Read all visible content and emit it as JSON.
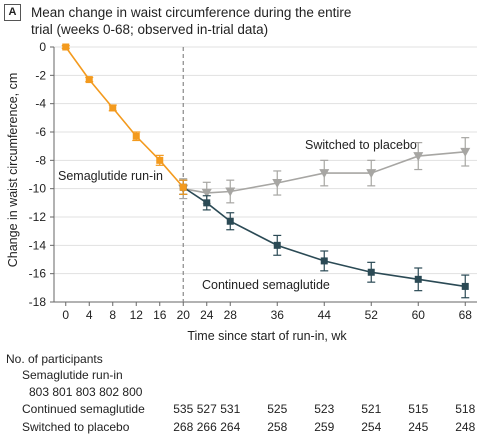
{
  "panel": "A",
  "title_line1": "Mean change in waist circumference during the entire",
  "title_line2": "trial (weeks 0-68; observed in-trial data)",
  "colors": {
    "runin": "#f39a1e",
    "continued": "#2b4a55",
    "placebo": "#a7a6a3",
    "axis": "#666666",
    "grid": "#e1e1e1",
    "dashed": "#888888"
  },
  "chart_data": {
    "type": "line",
    "xlabel": "Time since start of run-in, wk",
    "ylabel": "Change in waist circumference, cm",
    "xlim": [
      -2,
      70
    ],
    "ylim": [
      -18,
      0
    ],
    "xticks": [
      0,
      4,
      8,
      12,
      16,
      20,
      24,
      28,
      36,
      44,
      52,
      60,
      68
    ],
    "yticks": [
      0,
      -2,
      -4,
      -6,
      -8,
      -10,
      -12,
      -14,
      -16,
      -18
    ],
    "grid": "horizontal",
    "reference_line_x": 20,
    "series": [
      {
        "name": "Semaglutide run-in",
        "marker": "square",
        "x": [
          0,
          4,
          8,
          12,
          16,
          20
        ],
        "y": [
          0,
          -2.3,
          -4.3,
          -6.3,
          -8.0,
          -9.9
        ],
        "err": [
          0.1,
          0.15,
          0.2,
          0.3,
          0.35,
          0.5
        ]
      },
      {
        "name": "Continued semaglutide",
        "marker": "square",
        "x": [
          20,
          24,
          28,
          36,
          44,
          52,
          60,
          68
        ],
        "y": [
          -9.9,
          -11.0,
          -12.3,
          -14.0,
          -15.1,
          -15.9,
          -16.4,
          -16.9
        ],
        "err": [
          0.5,
          0.5,
          0.6,
          0.7,
          0.7,
          0.7,
          0.8,
          0.8
        ]
      },
      {
        "name": "Switched to placebo",
        "marker": "triangle-down",
        "x": [
          20,
          24,
          28,
          36,
          44,
          52,
          60,
          68
        ],
        "y": [
          -10.0,
          -10.3,
          -10.2,
          -9.6,
          -8.9,
          -8.9,
          -7.7,
          -7.4
        ],
        "err": [
          0.7,
          0.75,
          0.8,
          0.85,
          0.9,
          0.9,
          0.95,
          1.0
        ]
      }
    ],
    "annotations": [
      "Semaglutide run-in",
      "Switched to placebo",
      "Continued semaglutide"
    ]
  },
  "participants": {
    "heading": "No. of participants",
    "runin_label": "Semaglutide run-in",
    "runin_values": "803 801 803 802 800",
    "continued_label": "Continued semaglutide",
    "continued_weeks": [
      20,
      24,
      28,
      36,
      44,
      52,
      60,
      68
    ],
    "continued_values": [
      "535",
      "527",
      "531",
      "525",
      "523",
      "521",
      "515",
      "518"
    ],
    "placebo_label": "Switched to placebo",
    "placebo_weeks": [
      20,
      24,
      28,
      36,
      44,
      52,
      60,
      68
    ],
    "placebo_values": [
      "268",
      "266",
      "264",
      "258",
      "259",
      "254",
      "245",
      "248"
    ]
  }
}
